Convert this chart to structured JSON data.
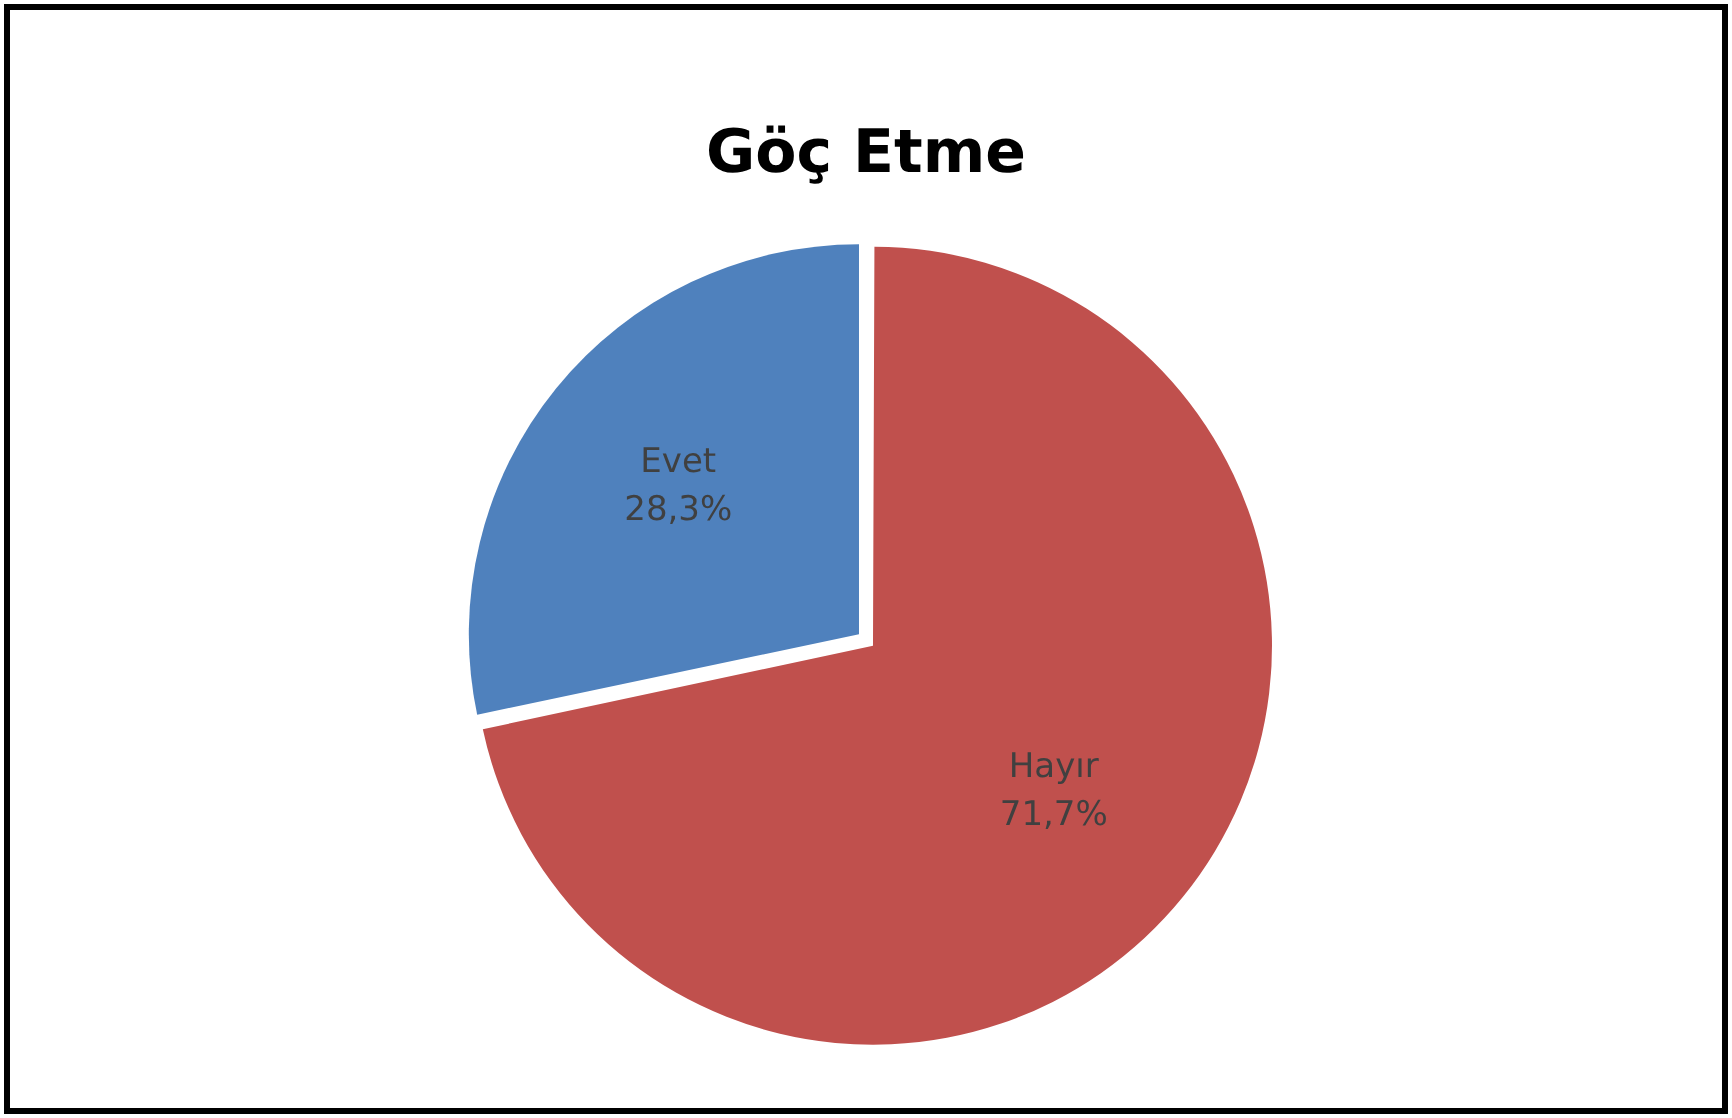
{
  "chart_data": {
    "type": "pie",
    "title": "Göç Etme",
    "categories": [
      "Hayır",
      "Evet"
    ],
    "values": [
      71.7,
      28.3
    ],
    "colors": [
      "#c0504d",
      "#4f81bd"
    ],
    "value_labels": [
      "71,7%",
      "28,3%"
    ],
    "legend": false
  }
}
